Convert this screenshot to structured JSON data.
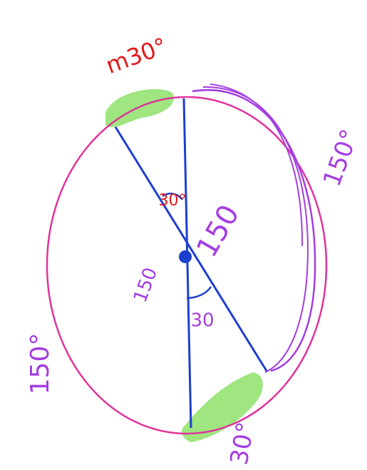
{
  "labels": [
    "m30°",
    "150°",
    "30°",
    "150",
    "150",
    "30",
    "150°",
    "30°"
  ]
}
